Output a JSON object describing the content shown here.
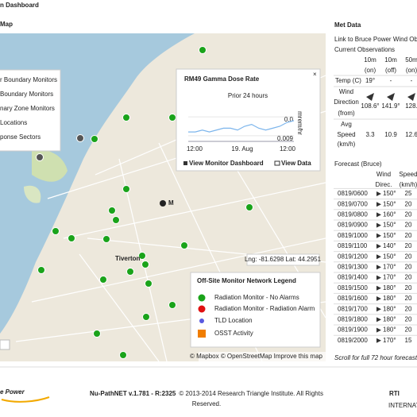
{
  "header": {
    "title": "n Dashboard"
  },
  "map": {
    "title": "Map",
    "layers": [
      "r Boundary Monitors",
      "Boundary Monitors",
      "nary Zone Monitors",
      "Locations",
      "ponse Sectors"
    ],
    "places": {
      "m": "M",
      "tiverton": "Tiverton"
    },
    "coordinates": "Lng: -81.6298 Lat: 44.2951",
    "attribution": "© Mapbox © OpenStreetMap Improve this map",
    "popup": {
      "title": "RM49 Gamma Dose Rate",
      "subtitle": "Prior 24 hours",
      "y_label": "mrem/hr",
      "chart_data": {
        "type": "line",
        "values": [
          0.0092,
          0.0092,
          0.0093,
          0.0092,
          0.0093,
          0.0094,
          0.0094,
          0.0093,
          0.0095,
          0.0096,
          0.0094,
          0.0093,
          0.0094,
          0.0095,
          0.0097,
          0.0098
        ],
        "ylim": [
          0.0087,
          0.0103
        ],
        "yticks": [
          {
            "value": 0.01,
            "label": "0.0"
          },
          0.009
        ],
        "color": "#7cb5ec",
        "xtick_labels": [
          "12:00",
          "19. Aug",
          "12:00"
        ]
      },
      "buttons": [
        "View Monitor Dashboard",
        "View Data"
      ]
    },
    "legend": {
      "title": "Off-Site Monitor Network Legend",
      "items": [
        {
          "label": "Radiation Monitor - No Alarms",
          "color": "#1aa31a",
          "shape": "circle"
        },
        {
          "label": "Radiation Monitor - Radiation Alarm",
          "color": "#e01010",
          "shape": "circle"
        },
        {
          "label": "TLD Location",
          "color": "#5a5ae0",
          "shape": "dot"
        },
        {
          "label": "OSST Activity",
          "color": "#f07d00",
          "shape": "square"
        }
      ]
    }
  },
  "met": {
    "title": "Met Data",
    "link": "Link to Bruce Power Wind Obser",
    "current": "Current Observations",
    "columns": [
      "10m",
      "10m",
      "50m"
    ],
    "column_sub": [
      "(on)",
      "(off)",
      "(on)"
    ],
    "rows": [
      {
        "label": [
          "Temp (C)"
        ],
        "values": [
          "19°",
          "-",
          "-"
        ]
      },
      {
        "label": [
          "Wind",
          "Direction",
          "(from)"
        ],
        "values": [
          "108.6°",
          "141.9°",
          "128."
        ]
      },
      {
        "label": [
          "Avg",
          "Speed",
          "(km/h)"
        ],
        "values": [
          3.3,
          10.9,
          12.6
        ]
      }
    ],
    "forecast_title": "Forecast (Bruce)",
    "forecast_header": [
      [
        "Wind",
        "Direc."
      ],
      [
        "Speed",
        "(km/h)"
      ]
    ],
    "forecast": [
      [
        "0819/0600",
        "150°",
        25
      ],
      [
        "0819/0700",
        "150°",
        20
      ],
      [
        "0819/0800",
        "160°",
        20
      ],
      [
        "0819/0900",
        "150°",
        20
      ],
      [
        "0819/1000",
        "150°",
        20
      ],
      [
        "0819/1100",
        "140°",
        20
      ],
      [
        "0819/1200",
        "150°",
        20
      ],
      [
        "0819/1300",
        "170°",
        20
      ],
      [
        "0819/1400",
        "170°",
        20
      ],
      [
        "0819/1500",
        "180°",
        20
      ],
      [
        "0819/1600",
        "180°",
        20
      ],
      [
        "0819/1700",
        "180°",
        20
      ],
      [
        "0819/1800",
        "180°",
        20
      ],
      [
        "0819/1900",
        "180°",
        20
      ],
      [
        "0819/2000",
        "170°",
        15
      ]
    ],
    "scroll_note": "Scroll for full 72 hour forecast"
  },
  "footer": {
    "logo": "e Power",
    "version": "Nu-PathNET v.1.781 - R:2325",
    "copyright": [
      "© 2013-2014 Research Triangle Institute. All Rights",
      "Reserved."
    ],
    "rti": "RTI",
    "rti_sub": "INTERNAT"
  }
}
